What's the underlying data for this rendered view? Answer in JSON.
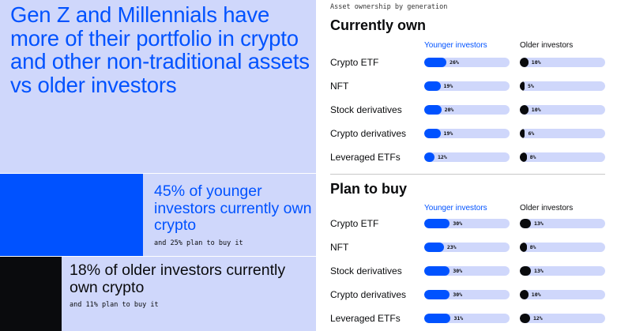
{
  "headline": "Gen Z and Millennials have more of their portfolio in crypto and other non-traditional assets vs older investors",
  "stats": [
    {
      "main": "45% of younger investors currently own crypto",
      "sub": "and 25% plan to buy it"
    },
    {
      "main": "18% of older investors currently own crypto",
      "sub": "and 11% plan to buy it"
    }
  ],
  "colors": {
    "younger": "#0052ff",
    "older": "#0a0b0d",
    "track": "#cfd7fb"
  },
  "chart_data": {
    "type": "bar",
    "title": "Asset ownership by generation",
    "max_value": 100,
    "columns": [
      "Younger investors",
      "Older investors"
    ],
    "sections": [
      {
        "title": "Currently own",
        "categories": [
          "Crypto ETF",
          "NFT",
          "Stock derivatives",
          "Crypto derivatives",
          "Leveraged ETFs"
        ],
        "series": [
          {
            "name": "Younger investors",
            "values": [
              26,
              19,
              20,
              19,
              12
            ]
          },
          {
            "name": "Older investors",
            "values": [
              10,
              5,
              10,
              6,
              8
            ]
          }
        ]
      },
      {
        "title": "Plan to buy",
        "categories": [
          "Crypto ETF",
          "NFT",
          "Stock derivatives",
          "Crypto derivatives",
          "Leveraged ETFs"
        ],
        "series": [
          {
            "name": "Younger investors",
            "values": [
              30,
              23,
              30,
              30,
              31
            ]
          },
          {
            "name": "Older investors",
            "values": [
              13,
              8,
              13,
              10,
              12
            ]
          }
        ]
      }
    ]
  }
}
